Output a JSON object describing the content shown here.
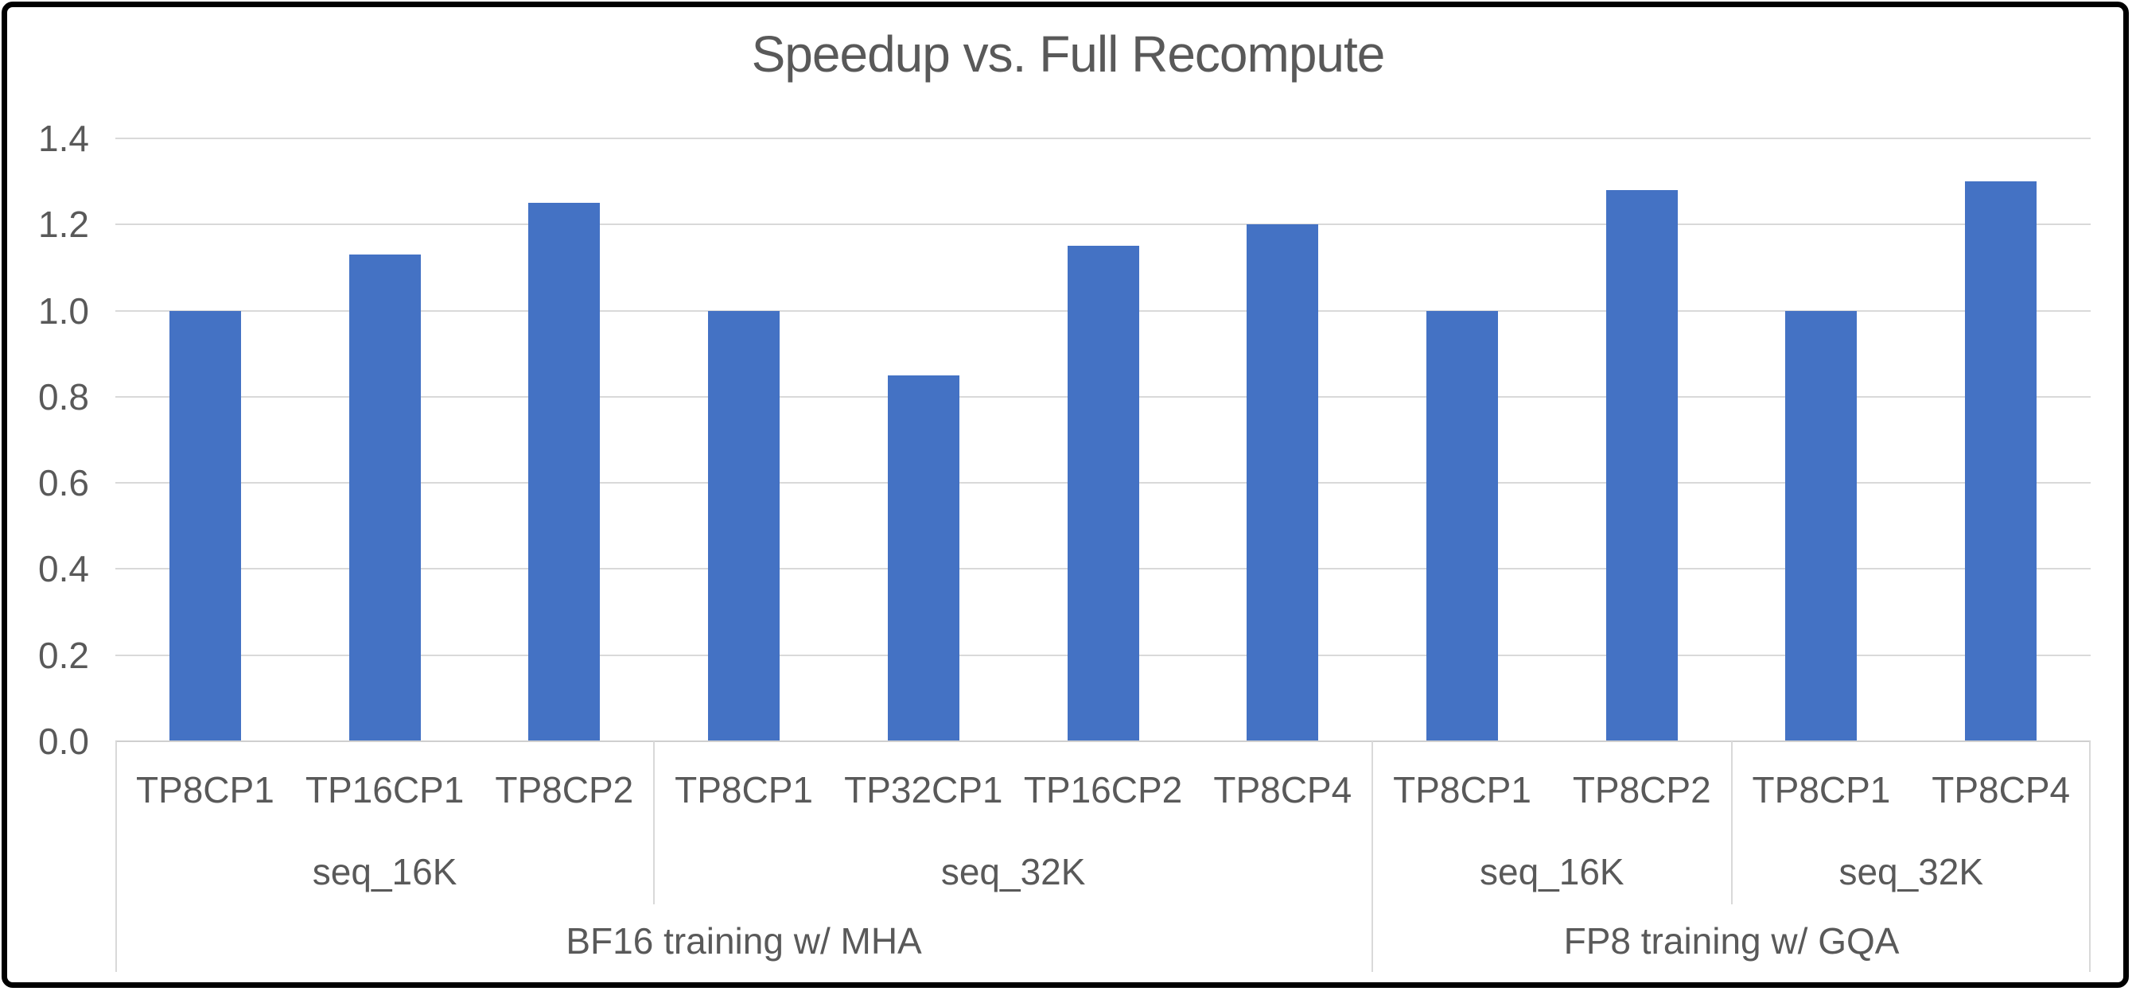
{
  "window": {
    "background": "#ffffff",
    "frame_border_color": "#000000"
  },
  "chart_data": {
    "type": "bar",
    "title": "Speedup vs. Full Recompute",
    "categories": [
      "TP8CP1",
      "TP16CP1",
      "TP8CP2",
      "TP8CP1",
      "TP32CP1",
      "TP16CP2",
      "TP8CP4",
      "TP8CP1",
      "TP8CP2",
      "TP8CP1",
      "TP8CP4"
    ],
    "values": [
      1.0,
      1.13,
      1.25,
      1.0,
      0.85,
      1.15,
      1.2,
      1.0,
      1.28,
      1.0,
      1.3
    ],
    "group_levels": [
      {
        "name": "sequence-length",
        "groups": [
          {
            "label": "seq_16K",
            "span": 3
          },
          {
            "label": "seq_32K",
            "span": 4
          },
          {
            "label": "seq_16K",
            "span": 2
          },
          {
            "label": "seq_32K",
            "span": 2
          }
        ]
      },
      {
        "name": "training-config",
        "groups": [
          {
            "label": "BF16 training w/ MHA",
            "span": 7
          },
          {
            "label": "FP8 training w/ GQA",
            "span": 4
          }
        ]
      }
    ],
    "xlabel": "",
    "ylabel": "",
    "ylim": [
      0.0,
      1.4
    ],
    "ytick_interval": 0.2,
    "ytick_labels": [
      "0.0",
      "0.2",
      "0.4",
      "0.6",
      "0.8",
      "1.0",
      "1.2",
      "1.4"
    ],
    "grid": true,
    "legend_position": "none",
    "bar_color": "#4472C4",
    "text_color": "#595959",
    "gridline_color": "#D9D9D9",
    "axis_line_color": "#CFCFCF",
    "divider_color": "#D9D9D9"
  }
}
